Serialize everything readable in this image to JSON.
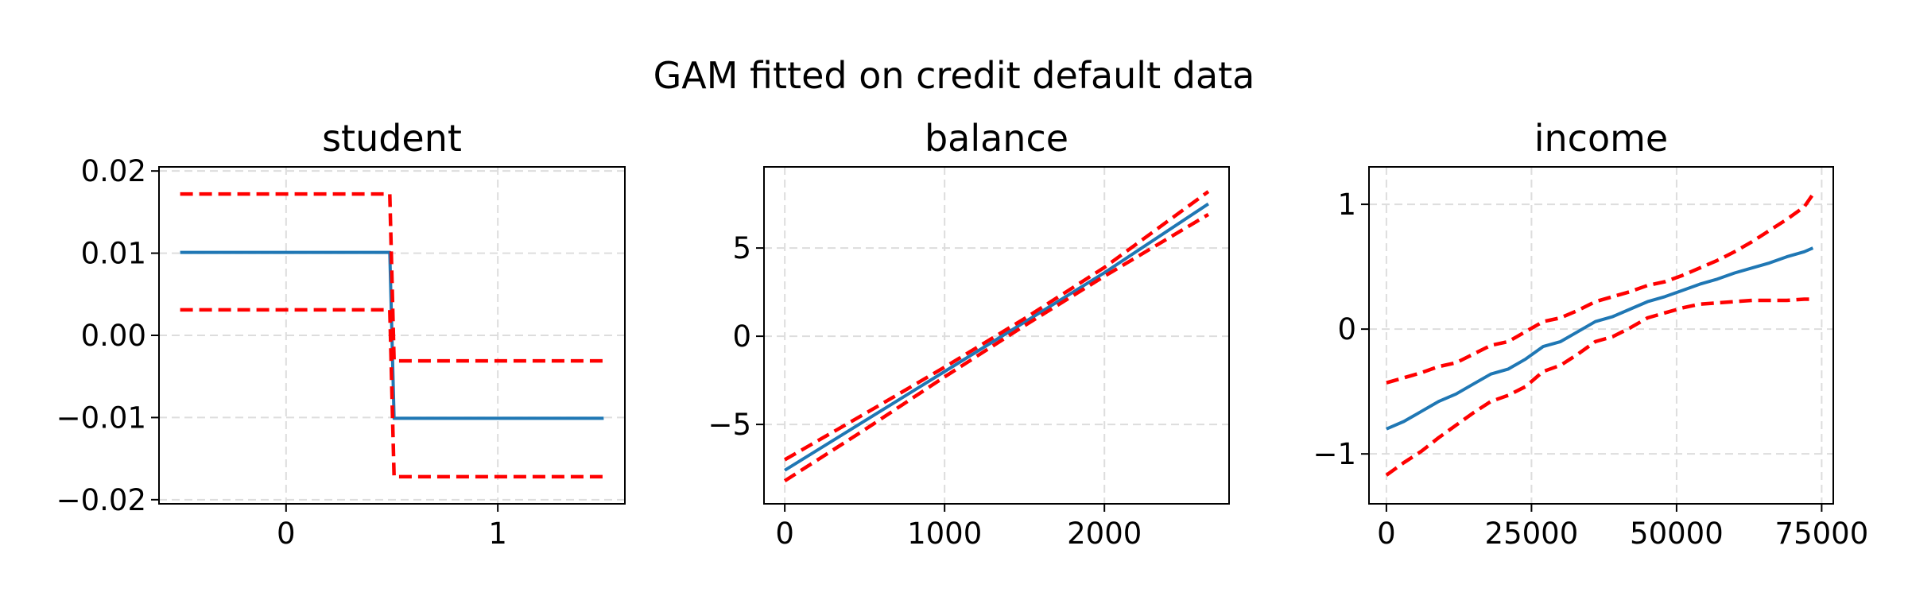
{
  "figure": {
    "suptitle": "GAM fitted on credit default data"
  },
  "colors": {
    "estimate": "#1f77b4",
    "interval": "#ff0000",
    "grid": "#dddddd",
    "axes": "#000000"
  },
  "chart_data": [
    {
      "type": "line",
      "title": "student",
      "xlabel": "",
      "ylabel": "",
      "xlim": [
        -0.6,
        1.6
      ],
      "ylim": [
        -0.0205,
        0.0205
      ],
      "xticks": [
        0,
        1
      ],
      "xtick_labels": [
        "0",
        "1"
      ],
      "yticks": [
        -0.02,
        -0.01,
        0.0,
        0.01,
        0.02
      ],
      "ytick_labels": [
        "−0.02",
        "−0.01",
        "0.00",
        "0.01",
        "0.02"
      ],
      "grid": true,
      "series": [
        {
          "role": "estimate",
          "style": "solid",
          "x": [
            -0.5,
            0.49,
            0.51,
            1.5
          ],
          "y": [
            0.0101,
            0.0101,
            -0.0101,
            -0.0101
          ]
        },
        {
          "role": "upper",
          "style": "dashed",
          "x": [
            -0.5,
            0.49,
            0.51,
            1.5
          ],
          "y": [
            0.0172,
            0.0172,
            -0.0031,
            -0.0031
          ]
        },
        {
          "role": "lower",
          "style": "dashed",
          "x": [
            -0.5,
            0.49,
            0.51,
            1.5
          ],
          "y": [
            0.0031,
            0.0031,
            -0.0172,
            -0.0172
          ]
        }
      ]
    },
    {
      "type": "line",
      "title": "balance",
      "xlabel": "",
      "ylabel": "",
      "xlim": [
        -130,
        2780
      ],
      "ylim": [
        -9.5,
        9.6
      ],
      "xticks": [
        0,
        1000,
        2000
      ],
      "xtick_labels": [
        "0",
        "1000",
        "2000"
      ],
      "yticks": [
        -5,
        0,
        5
      ],
      "ytick_labels": [
        "−5",
        "0",
        "5"
      ],
      "grid": true,
      "series": [
        {
          "role": "estimate",
          "style": "solid",
          "x": [
            0,
            500,
            1000,
            1500,
            2000,
            2650
          ],
          "y": [
            -7.6,
            -4.8,
            -2.0,
            0.8,
            3.6,
            7.5
          ]
        },
        {
          "role": "upper",
          "style": "dashed",
          "x": [
            0,
            500,
            1000,
            1500,
            2000,
            2650
          ],
          "y": [
            -7.0,
            -4.4,
            -1.75,
            1.0,
            3.9,
            8.2
          ]
        },
        {
          "role": "lower",
          "style": "dashed",
          "x": [
            0,
            500,
            1000,
            1500,
            2000,
            2650
          ],
          "y": [
            -8.2,
            -5.3,
            -2.3,
            0.6,
            3.4,
            6.9
          ]
        }
      ]
    },
    {
      "type": "line",
      "title": "income",
      "xlabel": "",
      "ylabel": "",
      "xlim": [
        -3000,
        77000
      ],
      "ylim": [
        -1.4,
        1.3
      ],
      "xticks": [
        0,
        25000,
        50000,
        75000
      ],
      "xtick_labels": [
        "0",
        "25000",
        "50000",
        "75000"
      ],
      "yticks": [
        -1,
        0,
        1
      ],
      "ytick_labels": [
        "−1",
        "0",
        "1"
      ],
      "grid": true,
      "series": [
        {
          "role": "estimate",
          "style": "solid",
          "x": [
            0,
            3000,
            6000,
            9000,
            12000,
            15000,
            18000,
            21000,
            24000,
            27000,
            30000,
            33000,
            36000,
            39000,
            42000,
            45000,
            48000,
            51000,
            54000,
            57000,
            60000,
            63000,
            66000,
            69000,
            72000,
            73500
          ],
          "y": [
            -0.8,
            -0.74,
            -0.66,
            -0.58,
            -0.52,
            -0.44,
            -0.36,
            -0.32,
            -0.24,
            -0.14,
            -0.1,
            -0.02,
            0.06,
            0.1,
            0.16,
            0.22,
            0.26,
            0.31,
            0.36,
            0.4,
            0.45,
            0.49,
            0.53,
            0.58,
            0.62,
            0.65
          ]
        },
        {
          "role": "upper",
          "style": "dashed",
          "x": [
            0,
            3000,
            6000,
            9000,
            12000,
            15000,
            18000,
            21000,
            24000,
            27000,
            30000,
            33000,
            36000,
            39000,
            42000,
            45000,
            48000,
            51000,
            54000,
            57000,
            60000,
            63000,
            66000,
            69000,
            72000,
            73500
          ],
          "y": [
            -0.43,
            -0.39,
            -0.35,
            -0.3,
            -0.27,
            -0.2,
            -0.13,
            -0.1,
            -0.02,
            0.06,
            0.09,
            0.15,
            0.22,
            0.26,
            0.3,
            0.35,
            0.38,
            0.43,
            0.49,
            0.55,
            0.62,
            0.7,
            0.79,
            0.88,
            0.98,
            1.08
          ]
        },
        {
          "role": "lower",
          "style": "dashed",
          "x": [
            0,
            3000,
            6000,
            9000,
            12000,
            15000,
            18000,
            21000,
            24000,
            27000,
            30000,
            33000,
            36000,
            39000,
            42000,
            45000,
            48000,
            51000,
            54000,
            57000,
            60000,
            63000,
            66000,
            69000,
            72000,
            73500
          ],
          "y": [
            -1.17,
            -1.07,
            -0.98,
            -0.87,
            -0.77,
            -0.67,
            -0.58,
            -0.53,
            -0.46,
            -0.34,
            -0.29,
            -0.2,
            -0.1,
            -0.06,
            0.01,
            0.09,
            0.13,
            0.17,
            0.2,
            0.21,
            0.22,
            0.23,
            0.23,
            0.23,
            0.24,
            0.24
          ]
        }
      ]
    }
  ]
}
